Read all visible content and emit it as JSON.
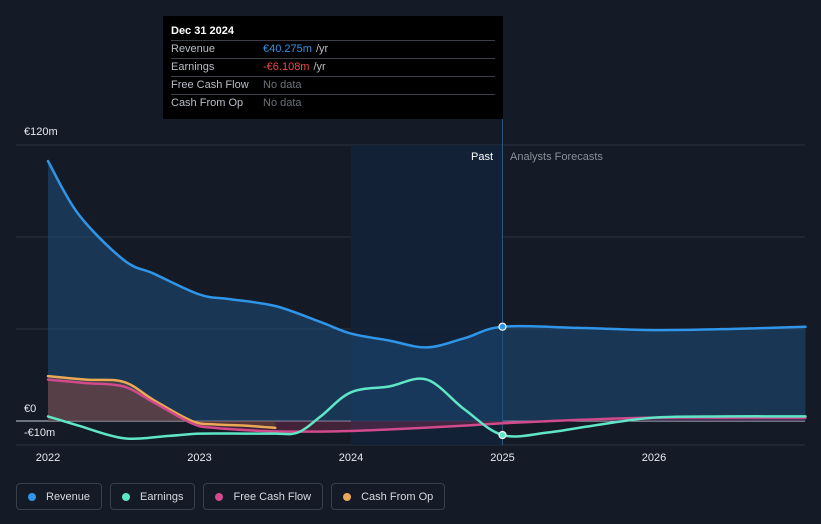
{
  "tooltip": {
    "date": "Dec 31 2024",
    "rows": [
      {
        "label": "Revenue",
        "value": "€40.275m",
        "unit": "/yr"
      },
      {
        "label": "Earnings",
        "value": "-€6.108m",
        "unit": "/yr"
      },
      {
        "label": "Free Cash Flow",
        "value": "No data",
        "unit": ""
      },
      {
        "label": "Cash From Op",
        "value": "No data",
        "unit": ""
      }
    ]
  },
  "labels": {
    "past": "Past",
    "forecast": "Analysts Forecasts"
  },
  "legend": [
    {
      "label": "Revenue",
      "color": "#2f95e8"
    },
    {
      "label": "Earnings",
      "color": "#5ee6c6"
    },
    {
      "label": "Free Cash Flow",
      "color": "#d04a8c"
    },
    {
      "label": "Cash From Op",
      "color": "#e9a955"
    }
  ],
  "chart_data": {
    "type": "line",
    "title": "",
    "ylabel": "EUR",
    "ylim": [
      -10,
      120
    ],
    "y_ticks": [
      {
        "value": 120,
        "label": "€120m"
      },
      {
        "value": 0,
        "label": "€0"
      },
      {
        "value": -10,
        "label": "-€10m"
      }
    ],
    "x_ticks": [
      {
        "value": 2022,
        "label": "2022"
      },
      {
        "value": 2023,
        "label": "2023"
      },
      {
        "value": 2024,
        "label": "2024"
      },
      {
        "value": 2025,
        "label": "2025"
      },
      {
        "value": 2026,
        "label": "2026"
      }
    ],
    "xlim": [
      2021.8,
      2027.0
    ],
    "divider_x": 2025.0,
    "highlight_x": 2025.0,
    "series": [
      {
        "name": "Revenue",
        "color": "#2f95e8",
        "fill": true,
        "x": [
          2022.0,
          2022.2,
          2022.5,
          2022.7,
          2023.0,
          2023.2,
          2023.5,
          2023.8,
          2024.0,
          2024.25,
          2024.5,
          2024.75,
          2025.0,
          2025.5,
          2026.0,
          2026.5,
          2027.0
        ],
        "y": [
          113,
          90,
          70,
          64,
          55,
          53,
          50,
          43,
          38,
          35,
          32,
          36,
          41,
          40.5,
          39.5,
          40,
          41
        ]
      },
      {
        "name": "Earnings",
        "color": "#5ee6c6",
        "fill": false,
        "x": [
          2022.0,
          2022.2,
          2022.5,
          2022.8,
          2023.0,
          2023.3,
          2023.5,
          2023.65,
          2023.8,
          2024.0,
          2024.25,
          2024.5,
          2024.75,
          2025.0,
          2025.3,
          2025.6,
          2026.0,
          2026.5,
          2027.0
        ],
        "y": [
          2,
          -2,
          -7.5,
          -6.5,
          -5.5,
          -5.5,
          -5.5,
          -5,
          2,
          12.5,
          15,
          18,
          5,
          -6.1,
          -5,
          -2,
          1.5,
          2,
          2
        ]
      },
      {
        "name": "Free Cash Flow",
        "color": "#d04a8c",
        "fill": true,
        "x": [
          2022.0,
          2022.25,
          2022.5,
          2022.7,
          2022.95,
          2023.1,
          2023.5,
          2023.9,
          2024.3,
          2024.75,
          2025.0,
          2025.5,
          2026.0,
          2026.5,
          2027.0
        ],
        "y": [
          18,
          16.5,
          15,
          8,
          -1,
          -3,
          -4.5,
          -4.5,
          -3.5,
          -2,
          -1,
          0.5,
          1.5,
          1.5,
          1.5
        ]
      },
      {
        "name": "Cash From Op",
        "color": "#e9a955",
        "fill": true,
        "x": [
          2022.0,
          2022.25,
          2022.5,
          2022.7,
          2022.95,
          2023.1,
          2023.3,
          2023.5
        ],
        "y": [
          19.5,
          18,
          17,
          9,
          0,
          -1.5,
          -2,
          -3
        ]
      }
    ]
  }
}
